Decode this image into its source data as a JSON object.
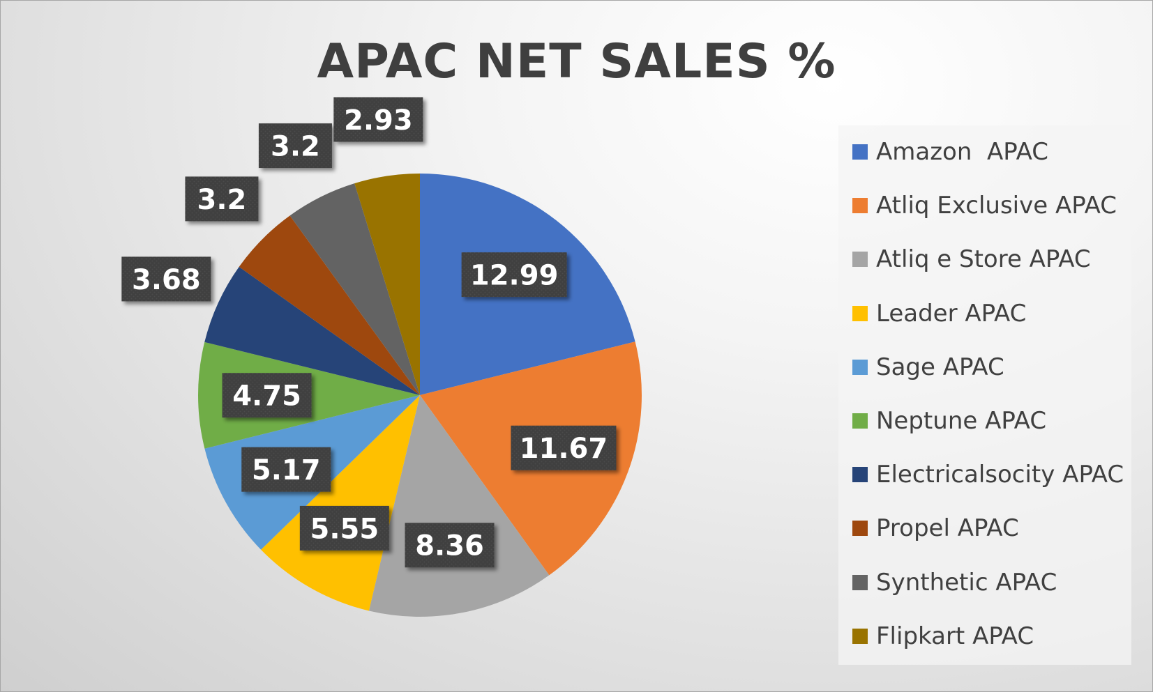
{
  "chart_data": {
    "type": "pie",
    "title": "APAC NET SALES %",
    "categories": [
      "Amazon  APAC",
      "Atliq Exclusive APAC",
      "Atliq e Store APAC",
      "Leader APAC",
      "Sage APAC",
      "Neptune APAC",
      "Electricalsocity APAC",
      "Propel APAC",
      "Synthetic APAC",
      "Flipkart APAC"
    ],
    "values": [
      12.99,
      11.67,
      8.36,
      5.55,
      5.17,
      4.75,
      3.68,
      3.2,
      3.2,
      2.93
    ],
    "data_labels": [
      "12.99",
      "11.67",
      "8.36",
      "5.55",
      "5.17",
      "4.75",
      "3.68",
      "3.2",
      "3.2",
      "2.93"
    ],
    "colors": [
      "#4472C4",
      "#ED7D31",
      "#A5A5A5",
      "#FFC000",
      "#5B9BD5",
      "#70AD47",
      "#264478",
      "#9E480E",
      "#636363",
      "#997300"
    ],
    "legend_position": "right"
  }
}
